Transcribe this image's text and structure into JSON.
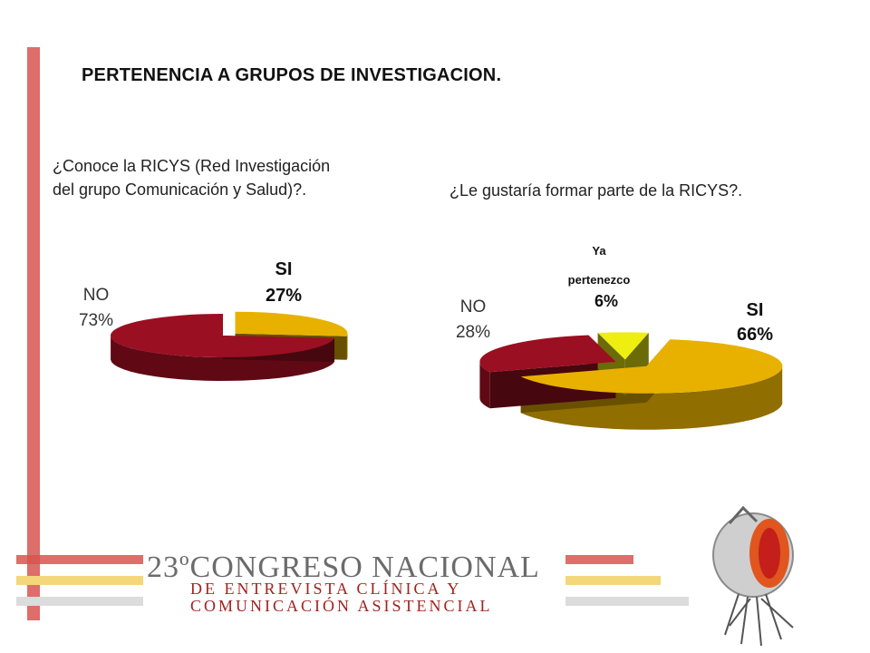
{
  "title": "PERTENENCIA  A GRUPOS DE INVESTIGACION.",
  "questions": {
    "q1_line1": "¿Conoce la RICYS (Red Investigación",
    "q1_line2": "del grupo Comunicación y Salud)?.",
    "q2": "¿Le gustaría formar parte de la RICYS?."
  },
  "chart_data": [
    {
      "type": "pie",
      "categories": [
        "SI",
        "NO"
      ],
      "values": [
        27,
        73
      ],
      "labels": [
        "27%",
        "73%"
      ],
      "colors": [
        "#e8b100",
        "#9b0f22"
      ]
    },
    {
      "type": "pie",
      "categories": [
        "SI",
        "NO",
        "Ya pertenezco"
      ],
      "values": [
        66,
        28,
        6
      ],
      "labels": [
        "66%",
        "28%",
        "6%"
      ],
      "colors": [
        "#e8b100",
        "#9b0f22",
        "#eeee10"
      ]
    }
  ],
  "chart_labels": {
    "c1_si": "SI",
    "c1_si_pct": "27%",
    "c1_no": "NO",
    "c1_no_pct": "73%",
    "c2_ya1": "Ya",
    "c2_ya2": "pertenezco",
    "c2_ya_pct": "6%",
    "c2_no": "NO",
    "c2_no_pct": "28%",
    "c2_si": "SI",
    "c2_si_pct": "66%"
  },
  "footer": {
    "line1": "23ºCONGRESO NACIONAL",
    "line2": "DE ENTREVISTA CLÍNICA Y",
    "line3": "COMUNICACIÓN ASISTENCIAL",
    "stripe_colors": [
      "#d9534f",
      "#f3d77a",
      "#dcdcdc"
    ]
  },
  "accent_color": "#d9534f"
}
